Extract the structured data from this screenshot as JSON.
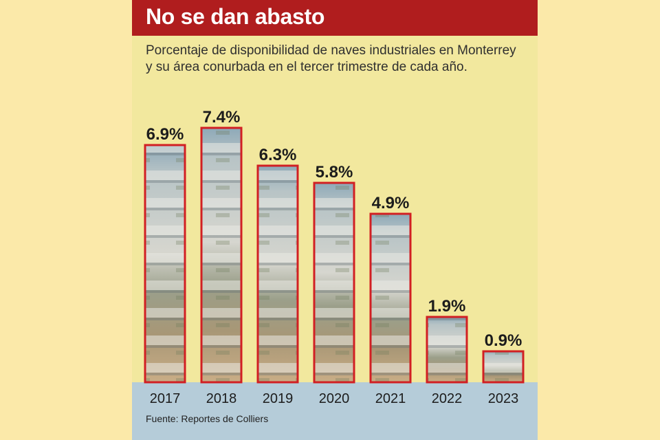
{
  "title": "No se dan abasto",
  "subtitle": "Porcentaje de disponibilidad de naves industriales en Monterrey y su área conurbada en el tercer trimestre de cada año.",
  "source": "Fuente: Reportes de Colliers",
  "colors": {
    "header": "#b01d1e",
    "card_background": "#f2e89e",
    "page_background": "#fbe9a9",
    "footer_band": "#b5ccd9",
    "bar_border": "#d11f23"
  },
  "chart_data": {
    "type": "bar",
    "title": "No se dan abasto",
    "categories": [
      "2017",
      "2018",
      "2019",
      "2020",
      "2021",
      "2022",
      "2023"
    ],
    "values": [
      6.9,
      7.4,
      6.3,
      5.8,
      4.9,
      1.9,
      0.9
    ],
    "value_labels": [
      "6.9%",
      "7.4%",
      "6.3%",
      "5.8%",
      "4.9%",
      "1.9%",
      "0.9%"
    ],
    "xlabel": "",
    "ylabel": "",
    "unit": "%",
    "ylim": [
      0,
      7.4
    ],
    "grid": false,
    "legend": "none"
  }
}
